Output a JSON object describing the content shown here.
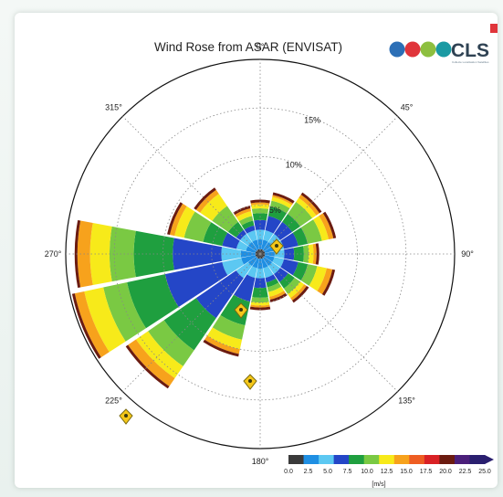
{
  "chart_data": {
    "type": "polar-bar",
    "title": "Wind Rose from ASAR (ENVISAT)",
    "direction_labels": [
      {
        "angle": 0,
        "label": "0°"
      },
      {
        "angle": 45,
        "label": "45°"
      },
      {
        "angle": 90,
        "label": "90°"
      },
      {
        "angle": 135,
        "label": "135°"
      },
      {
        "angle": 180,
        "label": "180°"
      },
      {
        "angle": 225,
        "label": "225°"
      },
      {
        "angle": 270,
        "label": "270°"
      },
      {
        "angle": 315,
        "label": "315°"
      }
    ],
    "radial_ticks": [
      "5%",
      "10%",
      "15%"
    ],
    "radial_values": [
      5,
      10,
      15
    ],
    "radial_max": 20,
    "speed_bins": [
      0,
      2.5,
      5,
      7.5,
      10,
      12.5,
      15,
      17.5,
      20
    ],
    "colors": [
      "#3a3a3a",
      "#1f8fe3",
      "#5cc8f2",
      "#2446c7",
      "#1f9f3f",
      "#7ac943",
      "#f7ea1a",
      "#f7a21c",
      "#ee5d22",
      "#d92125",
      "#6b1b10"
    ],
    "bars": [
      {
        "dir": 0,
        "cum": [
          0.5,
          1.5,
          2.5,
          3.5,
          4.2,
          4.7,
          5.1,
          5.3
        ]
      },
      {
        "dir": 22.5,
        "cum": [
          0.5,
          1.5,
          2.5,
          4.0,
          5.0,
          5.6,
          6.0,
          6.2
        ]
      },
      {
        "dir": 45,
        "cum": [
          0.5,
          1.5,
          2.5,
          4.0,
          5.0,
          6.5,
          7.0,
          7.4
        ]
      },
      {
        "dir": 67.5,
        "cum": [
          0.5,
          1.5,
          2.5,
          4.0,
          5.0,
          6.5,
          7.2,
          7.7
        ]
      },
      {
        "dir": 90,
        "cum": [
          0.5,
          1.5,
          2.5,
          3.5,
          4.5,
          5.0,
          5.5,
          5.8
        ]
      },
      {
        "dir": 112.5,
        "cum": [
          0.5,
          1.5,
          2.5,
          4.0,
          5.0,
          6.0,
          7.0,
          7.6
        ]
      },
      {
        "dir": 135,
        "cum": [
          0.5,
          1.5,
          2.5,
          3.5,
          4.3,
          5.0,
          5.5,
          5.8
        ]
      },
      {
        "dir": 157.5,
        "cum": [
          0.5,
          1.5,
          2.5,
          3.0,
          3.5,
          4.0,
          4.5,
          4.8
        ]
      },
      {
        "dir": 180,
        "cum": [
          0.5,
          1.5,
          2.5,
          3.5,
          4.5,
          5.0,
          5.3,
          5.5
        ]
      },
      {
        "dir": 202.5,
        "cum": [
          0.5,
          1.5,
          2.5,
          5.0,
          7.5,
          9.0,
          10.0,
          10.5
        ]
      },
      {
        "dir": 225,
        "cum": [
          0.5,
          1.5,
          3.0,
          8.0,
          12.0,
          14.0,
          15.5,
          16.5
        ]
      },
      {
        "dir": 247.5,
        "cum": [
          0.5,
          2.0,
          4.0,
          10.0,
          14.0,
          16.5,
          18.5,
          19.5
        ]
      },
      {
        "dir": 270,
        "cum": [
          0.5,
          2.0,
          4.0,
          9.0,
          13.0,
          15.5,
          17.5,
          18.8
        ]
      },
      {
        "dir": 292.5,
        "cum": [
          0.5,
          1.5,
          2.5,
          4.0,
          6.0,
          8.0,
          9.0,
          9.5
        ]
      },
      {
        "dir": 315,
        "cum": [
          0.5,
          1.5,
          2.5,
          3.0,
          4.0,
          6.0,
          7.5,
          8.0
        ]
      },
      {
        "dir": 337.5,
        "cum": [
          0.5,
          1.5,
          2.5,
          3.0,
          3.5,
          4.0,
          4.5,
          4.8
        ]
      }
    ],
    "colorbar": {
      "label": "[m/s]",
      "ticks": [
        "0.0",
        "2.5",
        "5.0",
        "7.5",
        "10.0",
        "12.5",
        "15.0",
        "17.5",
        "20.0",
        "22.5",
        "25.0"
      ],
      "colors": [
        "#3a3a3a",
        "#1f8fe3",
        "#5cc8f2",
        "#2446c7",
        "#1f9f3f",
        "#7ac943",
        "#f7ea1a",
        "#f7a21c",
        "#ee5d22",
        "#d92125",
        "#6b1b10",
        "#4b1f7a",
        "#2a1f6f"
      ]
    }
  },
  "logo": {
    "text": "CLS",
    "subtitle": "Collecte Localisation Satellites",
    "dot_colors": [
      "#2c6fb6",
      "#e0353b",
      "#8dbf3f",
      "#1a9aa3"
    ]
  },
  "markers": {
    "color": "#f5c718",
    "stroke": "#7a6a10"
  }
}
